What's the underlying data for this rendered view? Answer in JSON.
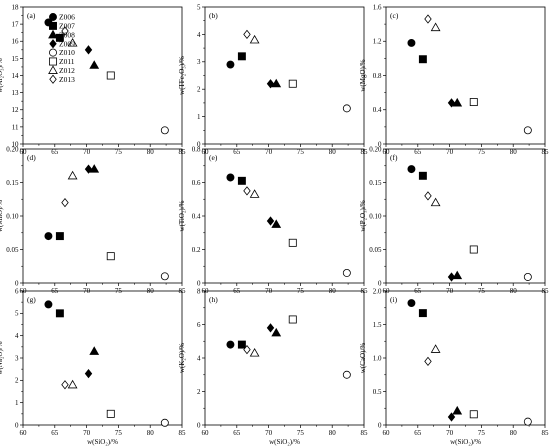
{
  "legend": [
    {
      "id": "Z006",
      "label": "Z006",
      "marker": "circle",
      "fill": "#000000"
    },
    {
      "id": "Z007",
      "label": "Z007",
      "marker": "square",
      "fill": "#000000"
    },
    {
      "id": "Z008",
      "label": "Z008",
      "marker": "triangle",
      "fill": "#000000"
    },
    {
      "id": "Z009",
      "label": "Z009",
      "marker": "diamond",
      "fill": "#000000"
    },
    {
      "id": "Z010",
      "label": "Z010",
      "marker": "circle",
      "fill": "none"
    },
    {
      "id": "Z011",
      "label": "Z011",
      "marker": "square",
      "fill": "none"
    },
    {
      "id": "Z012",
      "label": "Z012",
      "marker": "triangle",
      "fill": "none"
    },
    {
      "id": "Z013",
      "label": "Z013",
      "marker": "diamond",
      "fill": "none"
    }
  ],
  "xvalues": {
    "Z006": 64.0,
    "Z007": 65.8,
    "Z008": 71.2,
    "Z009": 70.3,
    "Z010": 82.3,
    "Z011": 73.8,
    "Z012": 67.8,
    "Z013": 66.6
  },
  "chart_data": [
    {
      "type": "scatter",
      "panel": "(a)",
      "xlabel": "",
      "ylabel": "w(Al₂O₃)/%",
      "xlim": [
        60,
        85
      ],
      "ylim": [
        10,
        18
      ],
      "xticks": [
        "60",
        "65",
        "70",
        "75",
        "80",
        "85"
      ],
      "yticks": [
        "10",
        "11",
        "12",
        "13",
        "14",
        "15",
        "16",
        "17",
        "18"
      ],
      "points": {
        "Z006": 17.1,
        "Z007": 16.2,
        "Z008": 14.6,
        "Z009": 15.5,
        "Z010": 10.8,
        "Z011": 14.0,
        "Z012": 15.9,
        "Z013": 16.6
      }
    },
    {
      "type": "scatter",
      "panel": "(b)",
      "xlabel": "",
      "ylabel": "w(TFe₂O₃)/%",
      "xlim": [
        60,
        85
      ],
      "ylim": [
        0,
        5
      ],
      "xticks": [
        "60",
        "65",
        "70",
        "75",
        "80",
        "85"
      ],
      "yticks": [
        "0",
        "1",
        "2",
        "3",
        "4",
        "5"
      ],
      "points": {
        "Z006": 2.9,
        "Z007": 3.2,
        "Z008": 2.2,
        "Z009": 2.2,
        "Z010": 1.3,
        "Z011": 2.2,
        "Z012": 3.8,
        "Z013": 4.0
      }
    },
    {
      "type": "scatter",
      "panel": "(c)",
      "xlabel": "",
      "ylabel": "w(MgO)/%",
      "xlim": [
        60,
        85
      ],
      "ylim": [
        0,
        1.6
      ],
      "xticks": [
        "60",
        "65",
        "70",
        "75",
        "80",
        "85"
      ],
      "yticks": [
        "0",
        "0.4",
        "0.8",
        "1.2",
        "1.6"
      ],
      "points": {
        "Z006": 1.18,
        "Z007": 0.99,
        "Z008": 0.48,
        "Z009": 0.48,
        "Z010": 0.16,
        "Z011": 0.49,
        "Z012": 1.36,
        "Z013": 1.46
      }
    },
    {
      "type": "scatter",
      "panel": "(d)",
      "xlabel": "",
      "ylabel": "w(MnO)/%",
      "xlim": [
        60,
        85
      ],
      "ylim": [
        0,
        0.2
      ],
      "xticks": [
        "60",
        "65",
        "70",
        "75",
        "80",
        "85"
      ],
      "yticks": [
        "0",
        "0.05",
        "0.10",
        "0.15",
        "0.20"
      ],
      "points": {
        "Z006": 0.07,
        "Z007": 0.07,
        "Z008": 0.17,
        "Z009": 0.17,
        "Z010": 0.01,
        "Z011": 0.04,
        "Z012": 0.16,
        "Z013": 0.12
      }
    },
    {
      "type": "scatter",
      "panel": "(e)",
      "xlabel": "",
      "ylabel": "w(TiO₂)/%",
      "xlim": [
        60,
        85
      ],
      "ylim": [
        0,
        0.8
      ],
      "xticks": [
        "60",
        "65",
        "70",
        "75",
        "80",
        "85"
      ],
      "yticks": [
        "0",
        "0.2",
        "0.4",
        "0.6",
        "0.8"
      ],
      "points": {
        "Z006": 0.63,
        "Z007": 0.61,
        "Z008": 0.35,
        "Z009": 0.37,
        "Z010": 0.06,
        "Z011": 0.24,
        "Z012": 0.53,
        "Z013": 0.55
      }
    },
    {
      "type": "scatter",
      "panel": "(f)",
      "xlabel": "",
      "ylabel": "w(P₂O₅)/%",
      "xlim": [
        60,
        85
      ],
      "ylim": [
        0,
        0.2
      ],
      "xticks": [
        "60",
        "65",
        "70",
        "75",
        "80",
        "85"
      ],
      "yticks": [
        "0",
        "0.05",
        "0.10",
        "0.15",
        "0.20"
      ],
      "points": {
        "Z006": 0.17,
        "Z007": 0.16,
        "Z008": 0.011,
        "Z009": 0.009,
        "Z010": 0.009,
        "Z011": 0.05,
        "Z012": 0.12,
        "Z013": 0.13
      }
    },
    {
      "type": "scatter",
      "panel": "(g)",
      "xlabel": "w(SiO₂)/%",
      "ylabel": "w(Na₂O)/%",
      "xlim": [
        60,
        85
      ],
      "ylim": [
        0,
        6
      ],
      "xticks": [
        "60",
        "65",
        "70",
        "75",
        "80",
        "85"
      ],
      "yticks": [
        "0",
        "1",
        "2",
        "3",
        "4",
        "5",
        "6"
      ],
      "points": {
        "Z006": 5.4,
        "Z007": 5.0,
        "Z008": 3.3,
        "Z009": 2.3,
        "Z010": 0.1,
        "Z011": 0.5,
        "Z012": 1.8,
        "Z013": 1.8
      }
    },
    {
      "type": "scatter",
      "panel": "(h)",
      "xlabel": "w(SiO₂)/%",
      "ylabel": "w(K₂O)/%",
      "xlim": [
        60,
        85
      ],
      "ylim": [
        0,
        8
      ],
      "xticks": [
        "60",
        "65",
        "70",
        "75",
        "80",
        "85"
      ],
      "yticks": [
        "0",
        "2",
        "4",
        "6",
        "8"
      ],
      "points": {
        "Z006": 4.8,
        "Z007": 4.8,
        "Z008": 5.5,
        "Z009": 5.8,
        "Z010": 3.0,
        "Z011": 6.3,
        "Z012": 4.3,
        "Z013": 4.5
      }
    },
    {
      "type": "scatter",
      "panel": "(i)",
      "xlabel": "w(SiO₂)/%",
      "ylabel": "w(CaO)/%",
      "xlim": [
        60,
        85
      ],
      "ylim": [
        0,
        2.0
      ],
      "xticks": [
        "60",
        "65",
        "70",
        "75",
        "80",
        "85"
      ],
      "yticks": [
        "0",
        "0.5",
        "1.0",
        "1.5",
        "2.0"
      ],
      "points": {
        "Z006": 1.82,
        "Z007": 1.67,
        "Z008": 0.21,
        "Z009": 0.12,
        "Z010": 0.05,
        "Z011": 0.16,
        "Z012": 1.13,
        "Z013": 0.95
      }
    }
  ]
}
